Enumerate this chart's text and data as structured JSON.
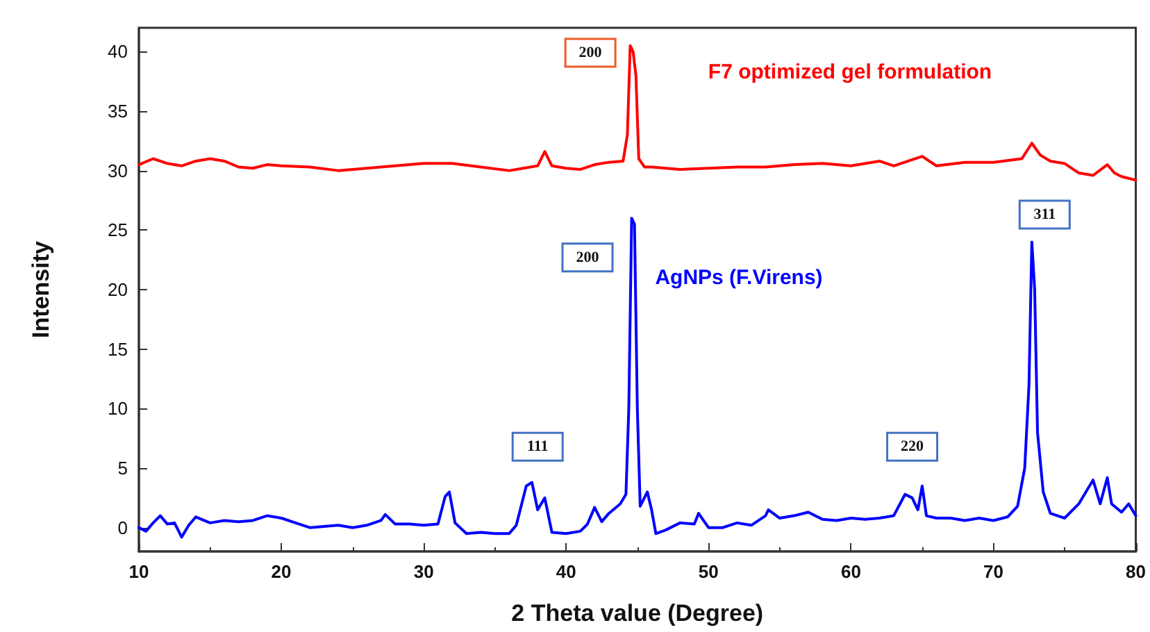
{
  "chart_data": {
    "type": "line",
    "xlabel": "2 Theta value (Degree)",
    "ylabel": "Intensity",
    "xlim": [
      10,
      80
    ],
    "xticks": [
      10,
      20,
      30,
      40,
      50,
      60,
      70,
      80
    ],
    "ylim": [
      -2,
      42
    ],
    "yticks": [
      0,
      5,
      10,
      15,
      20,
      25,
      30,
      35,
      40
    ],
    "grid": false,
    "legend": false,
    "marker": "none",
    "line_style": "solid",
    "series": [
      {
        "name": "F7 optimized gel formulation",
        "color": "#ff0000",
        "x": [
          10,
          11,
          12,
          13,
          14,
          15,
          16,
          17,
          18,
          19,
          20,
          22,
          24,
          26,
          28,
          30,
          32,
          34,
          36,
          37,
          38,
          38.5,
          39,
          40,
          41,
          42,
          43,
          44,
          44.3,
          44.5,
          44.7,
          44.9,
          45.1,
          45.5,
          46,
          48,
          50,
          52,
          54,
          56,
          58,
          60,
          62,
          63,
          65,
          66,
          68,
          70,
          72,
          72.7,
          73.3,
          74,
          75,
          76,
          77,
          78,
          78.5,
          79,
          80
        ],
        "values": [
          30.5,
          31,
          30.6,
          30.4,
          30.8,
          31,
          30.8,
          30.3,
          30.2,
          30.5,
          30.4,
          30.3,
          30,
          30.2,
          30.4,
          30.6,
          30.6,
          30.3,
          30,
          30.2,
          30.4,
          31.6,
          30.4,
          30.2,
          30.1,
          30.5,
          30.7,
          30.8,
          33,
          40.5,
          40,
          38,
          31,
          30.3,
          30.3,
          30.1,
          30.2,
          30.3,
          30.3,
          30.5,
          30.6,
          30.4,
          30.8,
          30.4,
          31.2,
          30.4,
          30.7,
          30.7,
          31,
          32.3,
          31.3,
          30.8,
          30.6,
          29.8,
          29.6,
          30.5,
          29.8,
          29.5,
          29.2
        ]
      },
      {
        "name": "AgNPs (F.Virens)",
        "color": "#0000ff",
        "x": [
          10,
          10.5,
          11,
          11.5,
          12,
          12.5,
          13,
          13.5,
          14,
          15,
          16,
          17,
          18,
          19,
          20,
          21,
          22,
          23,
          24,
          25,
          26,
          27,
          27.3,
          28,
          29,
          30,
          31,
          31.5,
          31.8,
          32.2,
          33,
          34,
          35,
          36,
          36.5,
          37.2,
          37.6,
          38,
          38.5,
          39,
          40,
          41,
          41.5,
          42,
          42.5,
          43,
          43.8,
          44.2,
          44.4,
          44.6,
          44.8,
          45,
          45.2,
          45.7,
          46,
          46.3,
          47,
          48,
          49,
          49.3,
          50,
          51,
          52,
          53,
          54,
          54.2,
          55,
          56,
          57,
          58,
          59,
          60,
          61,
          62,
          63,
          63.8,
          64.3,
          64.7,
          65,
          65.3,
          66,
          67,
          68,
          69,
          70,
          71,
          71.7,
          72.2,
          72.5,
          72.7,
          72.9,
          73.1,
          73.5,
          74,
          75,
          76,
          76.5,
          77,
          77.5,
          78,
          78.3,
          79,
          79.5,
          80
        ],
        "values": [
          0,
          -0.3,
          0.4,
          1,
          0.3,
          0.4,
          -0.8,
          0.2,
          0.9,
          0.4,
          0.6,
          0.5,
          0.6,
          1,
          0.8,
          0.4,
          0,
          0.1,
          0.2,
          0,
          0.2,
          0.6,
          1.1,
          0.3,
          0.3,
          0.2,
          0.3,
          2.6,
          3,
          0.4,
          -0.5,
          -0.4,
          -0.5,
          -0.5,
          0.2,
          3.5,
          3.8,
          1.5,
          2.5,
          -0.4,
          -0.5,
          -0.3,
          0.3,
          1.7,
          0.5,
          1.2,
          2,
          2.8,
          10,
          26,
          25.5,
          10,
          1.8,
          3,
          1.5,
          -0.5,
          -0.2,
          0.4,
          0.3,
          1.2,
          0,
          0,
          0.4,
          0.2,
          1,
          1.5,
          0.8,
          1,
          1.3,
          0.7,
          0.6,
          0.8,
          0.7,
          0.8,
          1,
          2.8,
          2.5,
          1.5,
          3.5,
          1,
          0.8,
          0.8,
          0.6,
          0.8,
          0.6,
          0.9,
          1.8,
          5,
          12,
          24,
          20,
          8,
          3,
          1.2,
          0.8,
          2,
          3,
          4,
          2,
          4.2,
          2,
          1.3,
          2,
          1
        ]
      }
    ],
    "annotations": [
      {
        "text": "200",
        "x": 41.7,
        "y": 39.9
      },
      {
        "text": "200",
        "x": 41.5,
        "y": 22.7
      },
      {
        "text": "111",
        "x": 38,
        "y": 6.8
      },
      {
        "text": "220",
        "x": 64.3,
        "y": 6.8
      },
      {
        "text": "311",
        "x": 73.6,
        "y": 26.3
      }
    ]
  }
}
